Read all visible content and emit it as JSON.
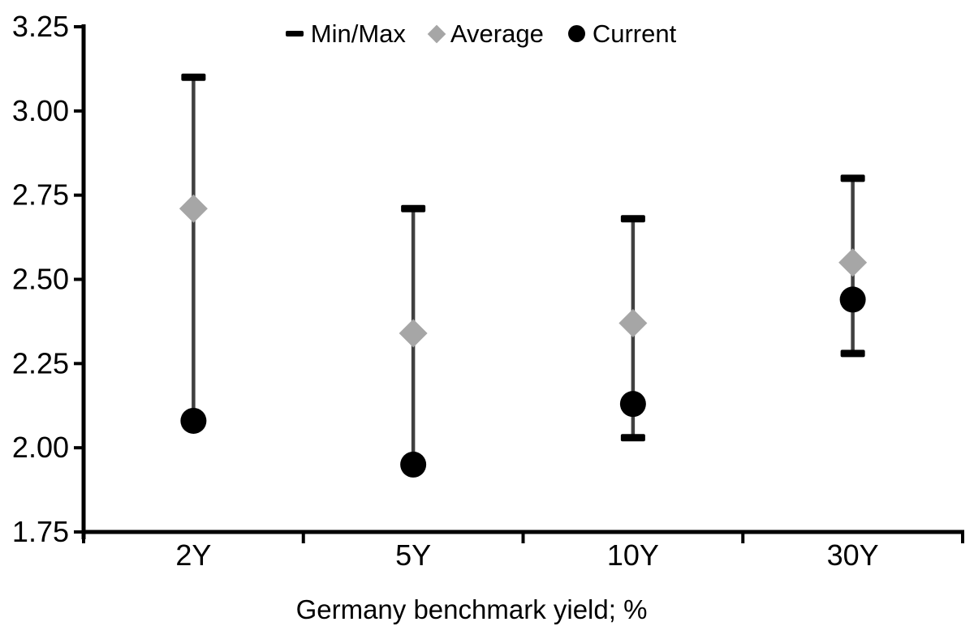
{
  "legend": {
    "items": [
      {
        "label": "Min/Max",
        "marker": "dash"
      },
      {
        "label": "Average",
        "marker": "diamond"
      },
      {
        "label": "Current",
        "marker": "circle"
      }
    ]
  },
  "chart_data": {
    "type": "scatter",
    "subtype": "min-max-range-dot-plot",
    "title": "",
    "xlabel": "Germany benchmark yield; %",
    "ylabel": "",
    "categories": [
      "2Y",
      "5Y",
      "10Y",
      "30Y"
    ],
    "series": [
      {
        "name": "Min/Max",
        "role": "range",
        "max": [
          3.1,
          2.71,
          2.68,
          2.8
        ],
        "min": [
          2.08,
          1.95,
          2.03,
          2.28
        ],
        "min_cap_visible": [
          false,
          false,
          true,
          true
        ]
      },
      {
        "name": "Average",
        "role": "point",
        "marker": "diamond",
        "values": [
          2.71,
          2.34,
          2.37,
          2.55
        ]
      },
      {
        "name": "Current",
        "role": "point",
        "marker": "circle",
        "values": [
          2.08,
          1.95,
          2.13,
          2.44
        ]
      }
    ],
    "ylim": [
      1.75,
      3.25
    ],
    "ytick_step": 0.25,
    "yticks": [
      3.25,
      3.0,
      2.75,
      2.5,
      2.25,
      2.0,
      1.75
    ],
    "ytick_labels": [
      "3.25",
      "3.00",
      "2.75",
      "2.50",
      "2.25",
      "2.00",
      "1.75"
    ],
    "grid": false,
    "legend_position": "top-center",
    "colors": {
      "axis": "#000000",
      "text": "#000000",
      "range_line": "#404040",
      "cap": "#000000",
      "average": "#a6a6a6",
      "current": "#000000",
      "background": "#ffffff"
    }
  }
}
